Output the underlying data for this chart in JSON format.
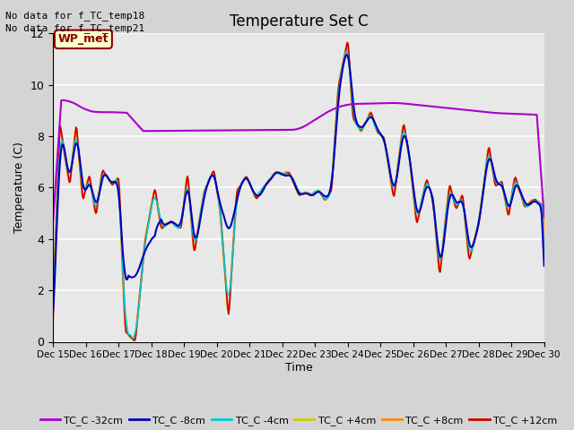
{
  "title": "Temperature Set C",
  "xlabel": "Time",
  "ylabel": "Temperature (C)",
  "ylim": [
    0,
    12
  ],
  "xlim": [
    0,
    15
  ],
  "x_tick_labels": [
    "Dec 15",
    "Dec 16",
    "Dec 17",
    "Dec 18",
    "Dec 19",
    "Dec 20",
    "Dec 21",
    "Dec 22",
    "Dec 23",
    "Dec 24",
    "Dec 25",
    "Dec 26",
    "Dec 27",
    "Dec 28",
    "Dec 29",
    "Dec 30"
  ],
  "annotation1": "No data for f_TC_temp18",
  "annotation2": "No data for f_TC_temp21",
  "wp_met_label": "WP_met",
  "series_labels": [
    "TC_C -32cm",
    "TC_C -8cm",
    "TC_C -4cm",
    "TC_C +4cm",
    "TC_C +8cm",
    "TC_C +12cm"
  ],
  "series_colors": [
    "#aa00cc",
    "#0000bb",
    "#00cccc",
    "#cccc00",
    "#ff8800",
    "#cc0000"
  ],
  "fig_bg_color": "#d4d4d4",
  "plot_bg_color": "#e8e8e8"
}
